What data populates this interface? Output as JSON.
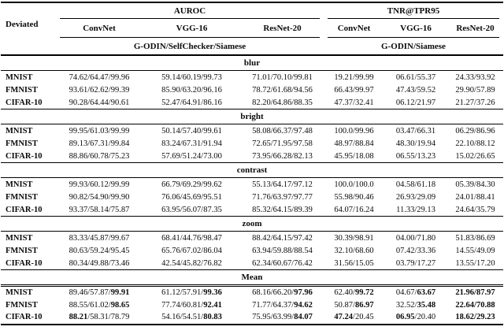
{
  "table": {
    "corner_label": "Deviated",
    "column_groups": [
      {
        "label": "AUROC",
        "models": [
          "ConvNet",
          "VGG-16",
          "ResNet-20"
        ],
        "methods_label": "G-ODIN/SelfChecker/Siamese"
      },
      {
        "label": "TNR@TPR95",
        "models": [
          "ConvNet",
          "VGG-16",
          "ResNet-20"
        ],
        "methods_label": "G-ODIN/Siamese"
      }
    ],
    "bold_marker": "*",
    "sections": [
      {
        "name": "blur",
        "rows": [
          {
            "dataset": "MNIST",
            "cells": [
              "74.62/64.47/99.96",
              "59.14/60.19/99.73",
              "71.01/70.10/99.81",
              "19.21/99.99",
              "06.61/55.37",
              "24.33/93.92"
            ]
          },
          {
            "dataset": "FMNIST",
            "cells": [
              "93.61/62.62/99.39",
              "85.90/63.20/96.16",
              "78.72/61.68/94.56",
              "66.43/99.97",
              "47.43/59.52",
              "29.90/57.89"
            ]
          },
          {
            "dataset": "CIFAR-10",
            "cells": [
              "90.28/64.44/90.61",
              "52.47/64.91/86.16",
              "82.20/64.86/88.35",
              "47.37/32.41",
              "06.12/21.97",
              "21.27/37.26"
            ]
          }
        ]
      },
      {
        "name": "bright",
        "rows": [
          {
            "dataset": "MNIST",
            "cells": [
              "99.95/61.03/99.99",
              "50.14/57.40/99.61",
              "58.08/66.37/97.48",
              "100.0/99.96",
              "03.47/66.31",
              "06.29/86.96"
            ]
          },
          {
            "dataset": "FMNIST",
            "cells": [
              "89.13/67.31/99.84",
              "83.24/67.31/91.94",
              "72.65/71.95/97.58",
              "48.97/88.84",
              "48.30/19.94",
              "22.10/88.12"
            ]
          },
          {
            "dataset": "CIFAR-10",
            "cells": [
              "88.86/60.78/75.23",
              "57.69/51.24/73.00",
              "73.95/66.28/82.13",
              "45.95/18.08",
              "06.55/13.23",
              "15.02/26.65"
            ]
          }
        ]
      },
      {
        "name": "contrast",
        "rows": [
          {
            "dataset": "MNIST",
            "cells": [
              "99.93/60.12/99.99",
              "66.79/69.29/99.62",
              "55.13/64.17/97.12",
              "100.0/100.0",
              "04.58/61.18",
              "05.39/84.30"
            ]
          },
          {
            "dataset": "FMNIST",
            "cells": [
              "90.82/54.90/99.90",
              "76.06/45.69/95.51",
              "71.76/63.97/97.77",
              "55.98/90.46",
              "26.93/29.09",
              "24.01/88.41"
            ]
          },
          {
            "dataset": "CIFAR-10",
            "cells": [
              "93.37/58.14/75.87",
              "63.95/56.07/87.35",
              "85.32/64.15/89.39",
              "64.07/16.24",
              "11.33/29.13",
              "24.64/35.79"
            ]
          }
        ]
      },
      {
        "name": "zoom",
        "rows": [
          {
            "dataset": "MNIST",
            "cells": [
              "83.33/45.87/99.67",
              "68.41/44.76/98.47",
              "88.42/64.15/97.42",
              "30.39/98.91",
              "04.00/71.80",
              "51.83/86.69"
            ]
          },
          {
            "dataset": "FMNIST",
            "cells": [
              "80.63/59.24/95.45",
              "65.76/67.02/86.04",
              "63.94/59.88/88.54",
              "32.10/68.60",
              "07.42/33.36",
              "14.55/49.09"
            ]
          },
          {
            "dataset": "CIFAR-10",
            "cells": [
              "80.34/49.88/73.46",
              "42.54/45.82/76.82",
              "62.34/60.67/76.42",
              "31.56/15.05",
              "03.79/17.27",
              "13.55/17.20"
            ]
          }
        ]
      },
      {
        "name": "Mean",
        "rows": [
          {
            "dataset": "MNIST",
            "cells": [
              "89.46/57.87/*99.91*",
              "61.12/57.91/*99.36*",
              "68.16/66.20/*97.96*",
              "62.40/*99.72*",
              "04.67/*63.67*",
              "*21.96/87.97*"
            ]
          },
          {
            "dataset": "FMNIST",
            "cells": [
              "88.55/61.02/*98.65*",
              "77.74/60.81/*92.41*",
              "71.77/64.37/*94.62*",
              "50.87/*86.97*",
              "32.52/*35.48*",
              "*22.64/70.88*"
            ]
          },
          {
            "dataset": "CIFAR-10",
            "cells": [
              "*88.21*/58.31/78.79",
              "54.16/54.51/*80.83*",
              "75.95/63.99/*84.07*",
              "*47.24*/20.45",
              "*06.95*/20.40",
              "*18.62/29.23*"
            ]
          }
        ]
      }
    ]
  },
  "colors": {
    "text": "#0b0b0b",
    "rule": "#000000",
    "background": "#ffffff"
  }
}
